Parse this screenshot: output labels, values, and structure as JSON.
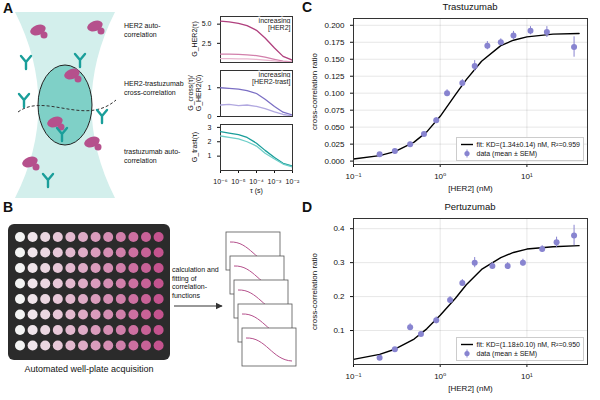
{
  "diagram": {
    "A": {
      "letter": "A",
      "labels": [
        "HER2 auto-correlation",
        "HER2-trastuzumab cross-correlation",
        "trastuzumab auto-correlation"
      ]
    },
    "B": {
      "letter": "B",
      "plate_caption": "Automated well-plate acquisition",
      "step_label": "calculation and fitting of correlation-functions"
    }
  },
  "chart_data": [
    {
      "panel": "A",
      "type": "line",
      "ylabel": "G_HER2(τ)",
      "log": "x",
      "tick_labels": "y",
      "xlim": [
        1e-06,
        0.01
      ],
      "ylim": [
        0,
        6
      ],
      "yticks": [
        2.5,
        {
          "value": 5,
          "label": "5.0"
        }
      ],
      "annotations": [
        "increasing [HER2]"
      ],
      "x": [
        1e-06,
        3e-06,
        1e-05,
        3e-05,
        0.0001,
        0.0003,
        0.001,
        0.003,
        0.01
      ],
      "series": [
        {
          "color": "#b0407e",
          "values": [
            5.4,
            5.3,
            5.1,
            4.8,
            4.2,
            3.2,
            1.9,
            0.8,
            0.3
          ]
        },
        {
          "color": "#d27fab",
          "values": [
            1.1,
            1.1,
            1.05,
            1.0,
            0.9,
            0.7,
            0.42,
            0.18,
            0.06
          ]
        },
        {
          "color": "#e9b6cf",
          "values": [
            0.5,
            0.5,
            0.48,
            0.46,
            0.4,
            0.32,
            0.2,
            0.08,
            0.03
          ]
        }
      ]
    },
    {
      "panel": "A",
      "type": "line",
      "ylabel": "G_cross(τ)/G_HER2(0)",
      "log": "x",
      "tick_labels": "y",
      "xlim": [
        1e-06,
        0.01
      ],
      "ylim": [
        0,
        1.6
      ],
      "yticks": [
        0,
        1
      ],
      "annotations": [
        "increasing [HER2-trast]"
      ],
      "x": [
        1e-06,
        3e-06,
        1e-05,
        3e-05,
        0.0001,
        0.0003,
        0.001,
        0.003,
        0.01
      ],
      "series": [
        {
          "color": "#7b6fc4",
          "values": [
            1.0,
            0.98,
            0.95,
            0.9,
            0.8,
            0.6,
            0.35,
            0.15,
            0.05
          ]
        },
        {
          "color": "#b1a8e0",
          "values": [
            0.4,
            0.42,
            0.38,
            0.4,
            0.35,
            0.27,
            0.16,
            0.07,
            0.02
          ]
        }
      ]
    },
    {
      "panel": "A",
      "type": "line",
      "ylabel": "G_trast(τ)",
      "xlabel": "τ (s)",
      "log": "x",
      "xlim": [
        1e-06,
        0.01
      ],
      "ylim": [
        0,
        3.2
      ],
      "yticks": [
        1,
        2,
        3
      ],
      "xticks": [
        {
          "value": 1e-06,
          "label": "10⁻⁶"
        },
        {
          "value": 1e-05,
          "label": "10⁻⁵"
        },
        {
          "value": 0.0001,
          "label": "10⁻⁴"
        },
        {
          "value": 0.001,
          "label": "10⁻³"
        },
        {
          "value": 0.01,
          "label": "10⁻²"
        }
      ],
      "x": [
        1e-06,
        3e-06,
        1e-05,
        3e-05,
        0.0001,
        0.0003,
        0.001,
        0.003,
        0.01
      ],
      "series": [
        {
          "color": "#1a9e9a",
          "values": [
            2.7,
            2.6,
            2.5,
            2.3,
            1.9,
            1.4,
            0.9,
            0.5,
            0.3
          ]
        },
        {
          "color": "#6fcfc9",
          "values": [
            2.4,
            2.3,
            2.2,
            2.0,
            1.7,
            1.2,
            0.8,
            0.45,
            0.25
          ]
        }
      ]
    },
    {
      "panel": "C",
      "type": "scatter",
      "title": "Trastuzumab",
      "xlabel": "[HER2] (nM)",
      "ylabel": "cross-correlation ratio",
      "log": "x",
      "grid": true,
      "legend": "lower right",
      "xlim": [
        0.1,
        50
      ],
      "ylim": [
        -0.005,
        0.21
      ],
      "xticks": [
        {
          "value": 0.1,
          "label": "10⁻¹"
        },
        {
          "value": 1,
          "label": "10⁰"
        },
        {
          "value": 10,
          "label": "10¹"
        }
      ],
      "yticks": [
        {
          "value": 0,
          "label": "0.000"
        },
        {
          "value": 0.025,
          "label": "0.025"
        },
        {
          "value": 0.05,
          "label": "0.050"
        },
        {
          "value": 0.075,
          "label": "0.075"
        },
        {
          "value": 0.1,
          "label": "0.100"
        },
        {
          "value": 0.125,
          "label": "0.125"
        },
        {
          "value": 0.15,
          "label": "0.150"
        },
        {
          "value": 0.175,
          "label": "0.175"
        },
        {
          "value": 0.2,
          "label": "0.200"
        }
      ],
      "series": [
        {
          "name": "fit: KD=(1.34±0.14) nM, R²=0.959",
          "type": "line",
          "color": "#000000",
          "x": [
            0.1,
            0.2,
            0.3,
            0.5,
            0.7,
            1.0,
            1.5,
            2.0,
            3.0,
            5.0,
            7.0,
            10,
            20,
            40
          ],
          "values": [
            0.003,
            0.008,
            0.014,
            0.028,
            0.043,
            0.066,
            0.098,
            0.12,
            0.147,
            0.17,
            0.178,
            0.183,
            0.187,
            0.188
          ]
        },
        {
          "name": "data (mean ± SEM)",
          "type": "scatter",
          "marker": "circle",
          "color": "#8884d0",
          "x": [
            0.2,
            0.3,
            0.45,
            0.65,
            0.9,
            1.2,
            1.8,
            2.5,
            3.5,
            5,
            7,
            11,
            17,
            35
          ],
          "values": [
            0.01,
            0.015,
            0.025,
            0.04,
            0.06,
            0.1,
            0.115,
            0.14,
            0.17,
            0.175,
            0.185,
            0.192,
            0.19,
            0.168
          ],
          "errors": [
            0.002,
            0.002,
            0.003,
            0.003,
            0.004,
            0.005,
            0.005,
            0.008,
            0.006,
            0.005,
            0.006,
            0.006,
            0.008,
            0.015
          ]
        }
      ]
    },
    {
      "panel": "D",
      "type": "scatter",
      "title": "Pertuzumab",
      "xlabel": "[HER2] (nM)",
      "ylabel": "cross-correlation ratio",
      "log": "x",
      "grid": true,
      "legend": "lower right",
      "xlim": [
        0.1,
        50
      ],
      "ylim": [
        0,
        0.43
      ],
      "xticks": [
        {
          "value": 0.1,
          "label": "10⁻¹"
        },
        {
          "value": 1,
          "label": "10⁰"
        },
        {
          "value": 10,
          "label": "10¹"
        }
      ],
      "yticks": [
        0.1,
        0.2,
        0.3,
        0.4
      ],
      "series": [
        {
          "name": "fit: KD=(1.18±0.10) nM, R²=0.950",
          "type": "line",
          "color": "#000000",
          "x": [
            0.1,
            0.2,
            0.3,
            0.5,
            0.7,
            1.0,
            1.5,
            2.0,
            3.0,
            5.0,
            7.0,
            10,
            20,
            40
          ],
          "values": [
            0.015,
            0.03,
            0.045,
            0.075,
            0.105,
            0.145,
            0.195,
            0.235,
            0.28,
            0.315,
            0.33,
            0.34,
            0.347,
            0.35
          ]
        },
        {
          "name": "data (mean ± SEM)",
          "type": "scatter",
          "marker": "circle",
          "color": "#8884d0",
          "x": [
            0.2,
            0.3,
            0.45,
            0.6,
            0.9,
            1.3,
            1.8,
            2.5,
            4,
            6,
            9,
            15,
            22,
            35
          ],
          "values": [
            0.02,
            0.045,
            0.11,
            0.09,
            0.13,
            0.19,
            0.24,
            0.3,
            0.29,
            0.29,
            0.3,
            0.34,
            0.36,
            0.38
          ],
          "errors": [
            0.003,
            0.005,
            0.01,
            0.006,
            0.01,
            0.01,
            0.01,
            0.015,
            0.01,
            0.01,
            0.01,
            0.01,
            0.015,
            0.03
          ]
        }
      ]
    }
  ]
}
